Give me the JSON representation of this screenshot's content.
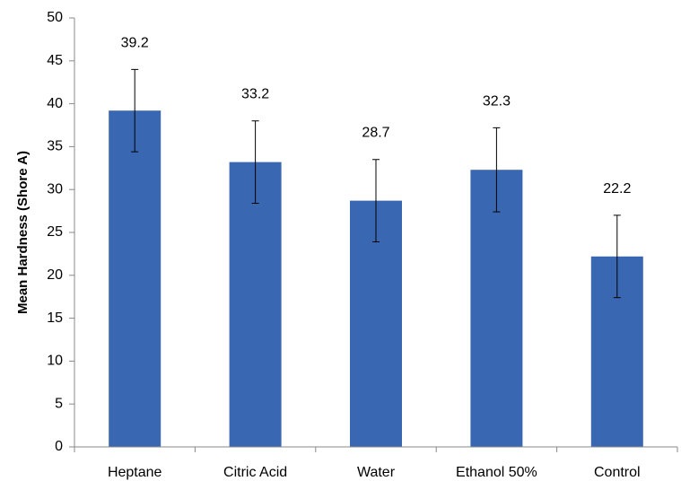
{
  "chart_data": {
    "type": "bar",
    "title": "",
    "xlabel": "",
    "ylabel": "Mean Hardness (Shore A)",
    "categories": [
      "Heptane",
      "Citric Acid",
      "Water",
      "Ethanol 50%",
      "Control"
    ],
    "values": [
      39.2,
      33.2,
      28.7,
      32.3,
      22.2
    ],
    "value_labels": [
      "39.2",
      "33.2",
      "28.7",
      "32.3",
      "22.2"
    ],
    "error": [
      4.8,
      4.8,
      4.8,
      4.9,
      4.8
    ],
    "ylim": [
      0,
      50
    ],
    "yticks": [
      0,
      5,
      10,
      15,
      20,
      25,
      30,
      35,
      40,
      45,
      50
    ],
    "ytick_labels": [
      "0",
      "5",
      "10",
      "15",
      "20",
      "25",
      "30",
      "35",
      "40",
      "45",
      "50"
    ],
    "grid": false,
    "legend": "none",
    "bar_color": "#3a67b1",
    "axis_color": "#888888",
    "error_bar_color": "#000000"
  }
}
